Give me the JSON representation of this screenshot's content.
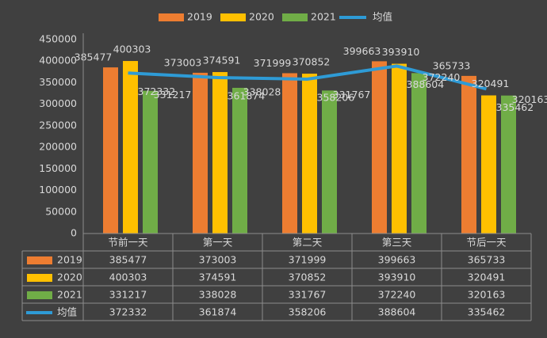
{
  "chart_data": {
    "type": "bar",
    "categories": [
      "节前一天",
      "第一天",
      "第二天",
      "第三天",
      "节后一天"
    ],
    "series": [
      {
        "name": "2019",
        "type": "bar",
        "color": "#ed7d31",
        "values": [
          385477,
          373003,
          371999,
          399663,
          365733
        ]
      },
      {
        "name": "2020",
        "type": "bar",
        "color": "#ffc000",
        "values": [
          400303,
          374591,
          370852,
          393910,
          320491
        ]
      },
      {
        "name": "2021",
        "type": "bar",
        "color": "#70ad47",
        "values": [
          331217,
          338028,
          331767,
          372240,
          320163
        ]
      },
      {
        "name": "均值",
        "type": "line",
        "color": "#2e9bd6",
        "values": [
          372332,
          361874,
          358206,
          388604,
          335462
        ]
      }
    ],
    "ylim": [
      0,
      450000
    ],
    "yticks": [
      0,
      50000,
      100000,
      150000,
      200000,
      250000,
      300000,
      350000,
      400000,
      450000
    ],
    "data_table": true
  }
}
